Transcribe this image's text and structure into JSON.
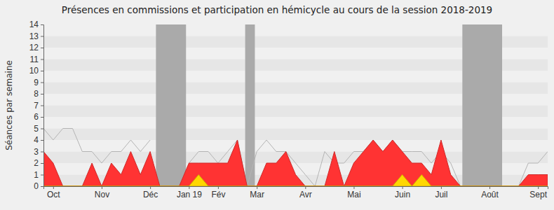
{
  "chart_data": {
    "type": "area",
    "title": "Présences en commissions et participation en hémicycle au cours de la session 2018-2019",
    "y_label": "Séances par semaine",
    "categories": [
      null,
      "Oct",
      null,
      null,
      null,
      null,
      "Nov",
      null,
      null,
      null,
      null,
      "Déc",
      null,
      null,
      null,
      "Jan 19",
      null,
      null,
      "Fév",
      null,
      null,
      null,
      "Mar",
      null,
      null,
      null,
      null,
      "Avr",
      null,
      null,
      null,
      null,
      "Mai",
      null,
      null,
      null,
      null,
      "Juin",
      null,
      null,
      null,
      "Juil",
      null,
      null,
      null,
      null,
      "Août",
      null,
      null,
      null,
      null,
      "Sept",
      null
    ],
    "series": [
      {
        "type": "line",
        "color": "#b4b4b4",
        "values": [
          5,
          4,
          5,
          5,
          3,
          3,
          2,
          3,
          3,
          4,
          3,
          4,
          null,
          null,
          null,
          2,
          3,
          3,
          2,
          3,
          4,
          0,
          3,
          4,
          3,
          3,
          2,
          1,
          0,
          3,
          2,
          2,
          3,
          3,
          4,
          3,
          4,
          3,
          3,
          3,
          2,
          3,
          2,
          0,
          null,
          null,
          null,
          null,
          null,
          0,
          2,
          2,
          3
        ]
      },
      {
        "type": "area",
        "color": "#ff3333",
        "values": [
          3,
          2,
          0,
          0,
          0,
          2,
          0,
          2,
          1,
          3,
          1,
          3,
          0,
          0,
          0,
          2,
          2,
          2,
          2,
          2,
          4,
          0,
          0,
          2,
          2,
          3,
          1,
          0,
          0,
          0,
          3,
          0,
          2,
          3,
          4,
          3,
          4,
          3,
          2,
          2,
          1,
          4,
          1,
          0,
          0,
          0,
          0,
          0,
          0,
          0,
          1,
          1,
          1
        ]
      },
      {
        "type": "area",
        "color": "#ffd700",
        "values": [
          0,
          0,
          0,
          0,
          0,
          0,
          0,
          0,
          0,
          0,
          0,
          0,
          0,
          0,
          0,
          0,
          1,
          0,
          0,
          0,
          0,
          0,
          0,
          0,
          0,
          0,
          0,
          0,
          0,
          0,
          0,
          0,
          0,
          0,
          0,
          0,
          0,
          1,
          0,
          1,
          0,
          0,
          0,
          0,
          0,
          0,
          0,
          0,
          0,
          0,
          0,
          0,
          0
        ]
      }
    ],
    "shaded_ranges": [
      [
        11.6,
        14.7
      ],
      [
        20.8,
        21.8
      ],
      [
        43.2,
        47.3
      ]
    ],
    "ylim": [
      0,
      14
    ],
    "yticks": [
      0,
      1,
      2,
      3,
      4,
      5,
      6,
      7,
      8,
      9,
      10,
      11,
      12,
      13,
      14
    ],
    "grid": true
  }
}
